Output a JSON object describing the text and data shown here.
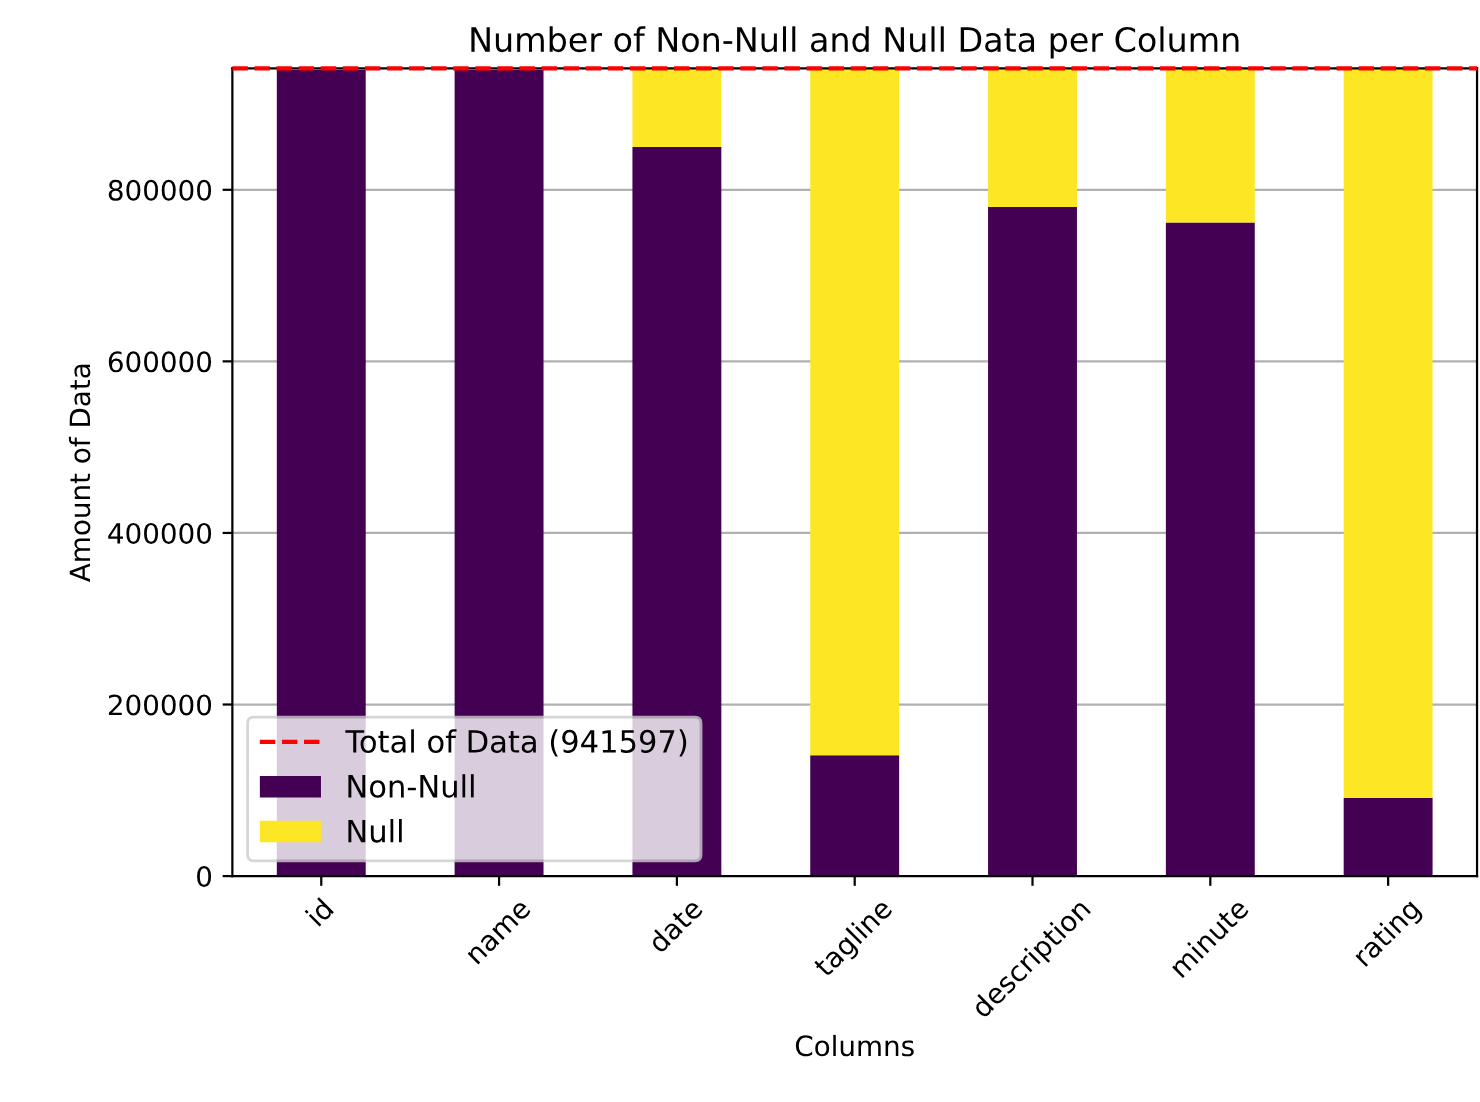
{
  "chart_data": {
    "type": "bar",
    "stacked": true,
    "title": "Number of Non-Null and Null Data per Column",
    "xlabel": "Columns",
    "ylabel": "Amount of Data",
    "categories": [
      "id",
      "name",
      "date",
      "tagline",
      "description",
      "minute",
      "rating"
    ],
    "series": [
      {
        "name": "Non-Null",
        "color": "#440154",
        "values": [
          940000,
          940000,
          850000,
          141000,
          780000,
          762000,
          91000
        ]
      },
      {
        "name": "Null",
        "color": "#fde725",
        "values": [
          0,
          0,
          91000,
          800000,
          161000,
          179000,
          850000
        ]
      }
    ],
    "ylim": [
      0,
      941597
    ],
    "yticks": [
      0,
      200000,
      400000,
      600000,
      800000
    ],
    "ref_lines": [
      {
        "axis": "y",
        "value": 941597,
        "label": "Total of Data (941597)",
        "color": "#ff0000",
        "line_style": "dashed"
      }
    ],
    "grid": "y",
    "legend": "lower left"
  }
}
